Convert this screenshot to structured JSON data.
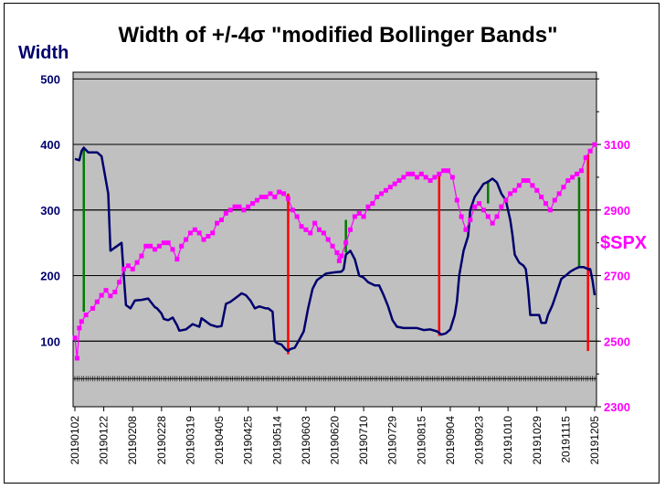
{
  "chart_data": {
    "type": "line",
    "title": "Width of +/-4σ \"modified Bollinger Bands\"",
    "left_axis": {
      "label": "Width",
      "ylim": [
        0,
        500
      ],
      "ticks": [
        "100",
        "200",
        "300",
        "400",
        "500"
      ],
      "tick_values": [
        100,
        200,
        300,
        400,
        500
      ]
    },
    "right_axis": {
      "label": "$SPX",
      "ylim": [
        2300,
        3300
      ],
      "ticks": [
        "2300",
        "2500",
        "2700",
        "2900",
        "3100"
      ],
      "tick_values": [
        2300,
        2500,
        2700,
        2900,
        3100
      ]
    },
    "x_tick_labels": [
      "20190102",
      "20190122",
      "20190208",
      "20190228",
      "20190319",
      "20190405",
      "20190425",
      "20190514",
      "20190603",
      "20190620",
      "20190710",
      "20190729",
      "20190815",
      "20190904",
      "20190923",
      "20191010",
      "20191029",
      "20191115",
      "20191205"
    ],
    "n_points": 235,
    "series": [
      {
        "name": "Width",
        "axis": "left",
        "color": "#00006e",
        "points": [
          [
            0,
            378
          ],
          [
            2,
            376
          ],
          [
            3,
            390
          ],
          [
            4,
            395
          ],
          [
            6,
            388
          ],
          [
            10,
            388
          ],
          [
            12,
            382
          ],
          [
            15,
            325
          ],
          [
            16,
            238
          ],
          [
            19,
            245
          ],
          [
            21,
            250
          ],
          [
            22,
            200
          ],
          [
            23,
            155
          ],
          [
            25,
            150
          ],
          [
            27,
            162
          ],
          [
            30,
            163
          ],
          [
            33,
            165
          ],
          [
            36,
            152
          ],
          [
            37,
            150
          ],
          [
            39,
            142
          ],
          [
            40,
            134
          ],
          [
            42,
            132
          ],
          [
            44,
            136
          ],
          [
            46,
            124
          ],
          [
            47,
            116
          ],
          [
            50,
            118
          ],
          [
            53,
            126
          ],
          [
            56,
            122
          ],
          [
            57,
            135
          ],
          [
            59,
            130
          ],
          [
            61,
            125
          ],
          [
            64,
            122
          ],
          [
            66,
            123
          ],
          [
            68,
            157
          ],
          [
            70,
            160
          ],
          [
            72,
            165
          ],
          [
            74,
            170
          ],
          [
            75,
            173
          ],
          [
            77,
            170
          ],
          [
            79,
            162
          ],
          [
            81,
            150
          ],
          [
            83,
            153
          ],
          [
            86,
            150
          ],
          [
            87,
            150
          ],
          [
            89,
            145
          ],
          [
            90,
            100
          ],
          [
            91,
            97
          ],
          [
            93,
            95
          ],
          [
            95,
            87
          ],
          [
            96,
            85
          ],
          [
            97,
            88
          ],
          [
            99,
            90
          ],
          [
            101,
            102
          ],
          [
            103,
            115
          ],
          [
            105,
            150
          ],
          [
            107,
            180
          ],
          [
            109,
            193
          ],
          [
            111,
            198
          ],
          [
            113,
            203
          ],
          [
            117,
            205
          ],
          [
            120,
            206
          ],
          [
            121,
            210
          ],
          [
            122,
            232
          ],
          [
            124,
            238
          ],
          [
            126,
            225
          ],
          [
            128,
            200
          ],
          [
            130,
            197
          ],
          [
            132,
            190
          ],
          [
            135,
            185
          ],
          [
            137,
            185
          ],
          [
            139,
            170
          ],
          [
            141,
            153
          ],
          [
            143,
            132
          ],
          [
            145,
            122
          ],
          [
            148,
            120
          ],
          [
            151,
            120
          ],
          [
            154,
            120
          ],
          [
            157,
            117
          ],
          [
            160,
            118
          ],
          [
            163,
            115
          ],
          [
            165,
            110
          ],
          [
            167,
            112
          ],
          [
            169,
            118
          ],
          [
            171,
            140
          ],
          [
            172,
            160
          ],
          [
            173,
            200
          ],
          [
            175,
            238
          ],
          [
            177,
            260
          ],
          [
            178,
            300
          ],
          [
            180,
            320
          ],
          [
            182,
            330
          ],
          [
            184,
            340
          ],
          [
            186,
            343
          ],
          [
            188,
            348
          ],
          [
            190,
            342
          ],
          [
            192,
            325
          ],
          [
            194,
            315
          ],
          [
            196,
            285
          ],
          [
            197,
            262
          ],
          [
            198,
            232
          ],
          [
            200,
            220
          ],
          [
            202,
            215
          ],
          [
            203,
            210
          ],
          [
            204,
            180
          ],
          [
            205,
            140
          ],
          [
            207,
            140
          ],
          [
            209,
            140
          ],
          [
            210,
            128
          ],
          [
            212,
            128
          ],
          [
            213,
            140
          ],
          [
            215,
            155
          ],
          [
            217,
            175
          ],
          [
            219,
            195
          ],
          [
            221,
            200
          ],
          [
            223,
            206
          ],
          [
            225,
            210
          ],
          [
            227,
            213
          ],
          [
            229,
            213
          ],
          [
            231,
            210
          ],
          [
            232,
            210
          ],
          [
            233,
            193
          ],
          [
            234,
            170
          ]
        ]
      },
      {
        "name": "$SPX",
        "axis": "right",
        "color": "#ff00ff",
        "points": [
          [
            0,
            2510
          ],
          [
            1,
            2448
          ],
          [
            2,
            2540
          ],
          [
            3,
            2560
          ],
          [
            5,
            2580
          ],
          [
            8,
            2600
          ],
          [
            10,
            2620
          ],
          [
            12,
            2640
          ],
          [
            14,
            2655
          ],
          [
            16,
            2638
          ],
          [
            18,
            2650
          ],
          [
            20,
            2680
          ],
          [
            22,
            2720
          ],
          [
            24,
            2730
          ],
          [
            26,
            2720
          ],
          [
            28,
            2740
          ],
          [
            30,
            2760
          ],
          [
            32,
            2790
          ],
          [
            34,
            2790
          ],
          [
            36,
            2780
          ],
          [
            38,
            2790
          ],
          [
            40,
            2800
          ],
          [
            42,
            2800
          ],
          [
            44,
            2780
          ],
          [
            46,
            2750
          ],
          [
            48,
            2790
          ],
          [
            50,
            2810
          ],
          [
            52,
            2830
          ],
          [
            54,
            2840
          ],
          [
            56,
            2830
          ],
          [
            58,
            2810
          ],
          [
            60,
            2820
          ],
          [
            62,
            2830
          ],
          [
            64,
            2860
          ],
          [
            66,
            2870
          ],
          [
            68,
            2890
          ],
          [
            70,
            2900
          ],
          [
            72,
            2910
          ],
          [
            74,
            2910
          ],
          [
            76,
            2900
          ],
          [
            78,
            2910
          ],
          [
            80,
            2920
          ],
          [
            82,
            2930
          ],
          [
            84,
            2940
          ],
          [
            86,
            2940
          ],
          [
            88,
            2950
          ],
          [
            90,
            2940
          ],
          [
            92,
            2955
          ],
          [
            94,
            2950
          ],
          [
            96,
            2935
          ],
          [
            98,
            2900
          ],
          [
            100,
            2880
          ],
          [
            102,
            2850
          ],
          [
            104,
            2840
          ],
          [
            106,
            2830
          ],
          [
            108,
            2860
          ],
          [
            110,
            2840
          ],
          [
            112,
            2830
          ],
          [
            114,
            2810
          ],
          [
            116,
            2790
          ],
          [
            118,
            2770
          ],
          [
            119,
            2745
          ],
          [
            120,
            2760
          ],
          [
            122,
            2800
          ],
          [
            124,
            2840
          ],
          [
            126,
            2880
          ],
          [
            128,
            2890
          ],
          [
            130,
            2880
          ],
          [
            132,
            2910
          ],
          [
            134,
            2920
          ],
          [
            136,
            2940
          ],
          [
            138,
            2950
          ],
          [
            140,
            2960
          ],
          [
            142,
            2970
          ],
          [
            144,
            2980
          ],
          [
            146,
            2990
          ],
          [
            148,
            3000
          ],
          [
            150,
            3010
          ],
          [
            152,
            3010
          ],
          [
            154,
            3000
          ],
          [
            156,
            3010
          ],
          [
            158,
            3000
          ],
          [
            160,
            2990
          ],
          [
            162,
            3000
          ],
          [
            164,
            3010
          ],
          [
            166,
            3020
          ],
          [
            168,
            3020
          ],
          [
            170,
            3000
          ],
          [
            172,
            2930
          ],
          [
            174,
            2880
          ],
          [
            176,
            2840
          ],
          [
            178,
            2870
          ],
          [
            180,
            2910
          ],
          [
            182,
            2920
          ],
          [
            184,
            2900
          ],
          [
            186,
            2880
          ],
          [
            188,
            2860
          ],
          [
            190,
            2880
          ],
          [
            192,
            2910
          ],
          [
            194,
            2930
          ],
          [
            196,
            2950
          ],
          [
            198,
            2960
          ],
          [
            200,
            2975
          ],
          [
            202,
            2990
          ],
          [
            204,
            2990
          ],
          [
            206,
            2975
          ],
          [
            208,
            2960
          ],
          [
            210,
            2940
          ],
          [
            212,
            2920
          ],
          [
            214,
            2900
          ],
          [
            216,
            2930
          ],
          [
            218,
            2950
          ],
          [
            220,
            2970
          ],
          [
            222,
            2990
          ],
          [
            224,
            3000
          ],
          [
            226,
            3010
          ],
          [
            228,
            3020
          ],
          [
            230,
            3060
          ],
          [
            232,
            3080
          ],
          [
            234,
            3100
          ]
        ]
      }
    ],
    "markers": [
      {
        "color": "#007a00",
        "index": 4,
        "top_value": 392,
        "bottom_value": 2590
      },
      {
        "color": "#ff0000",
        "index": 96,
        "top_value": 80,
        "bottom_value": 2950
      },
      {
        "color": "#007a00",
        "index": 122,
        "top_value": 235,
        "bottom_value": 2870
      },
      {
        "color": "#ff0000",
        "index": 164,
        "top_value": 108,
        "bottom_value": 3010
      },
      {
        "color": "#007a00",
        "index": 186,
        "top_value": 345,
        "bottom_value": 2920
      },
      {
        "color": "#007a00",
        "index": 227,
        "top_value": 212,
        "bottom_value": 3000
      },
      {
        "color": "#ff0000",
        "index": 231,
        "top_value": 85,
        "bottom_value": 3070
      }
    ],
    "grid": true,
    "background": "#c0c0c0"
  }
}
